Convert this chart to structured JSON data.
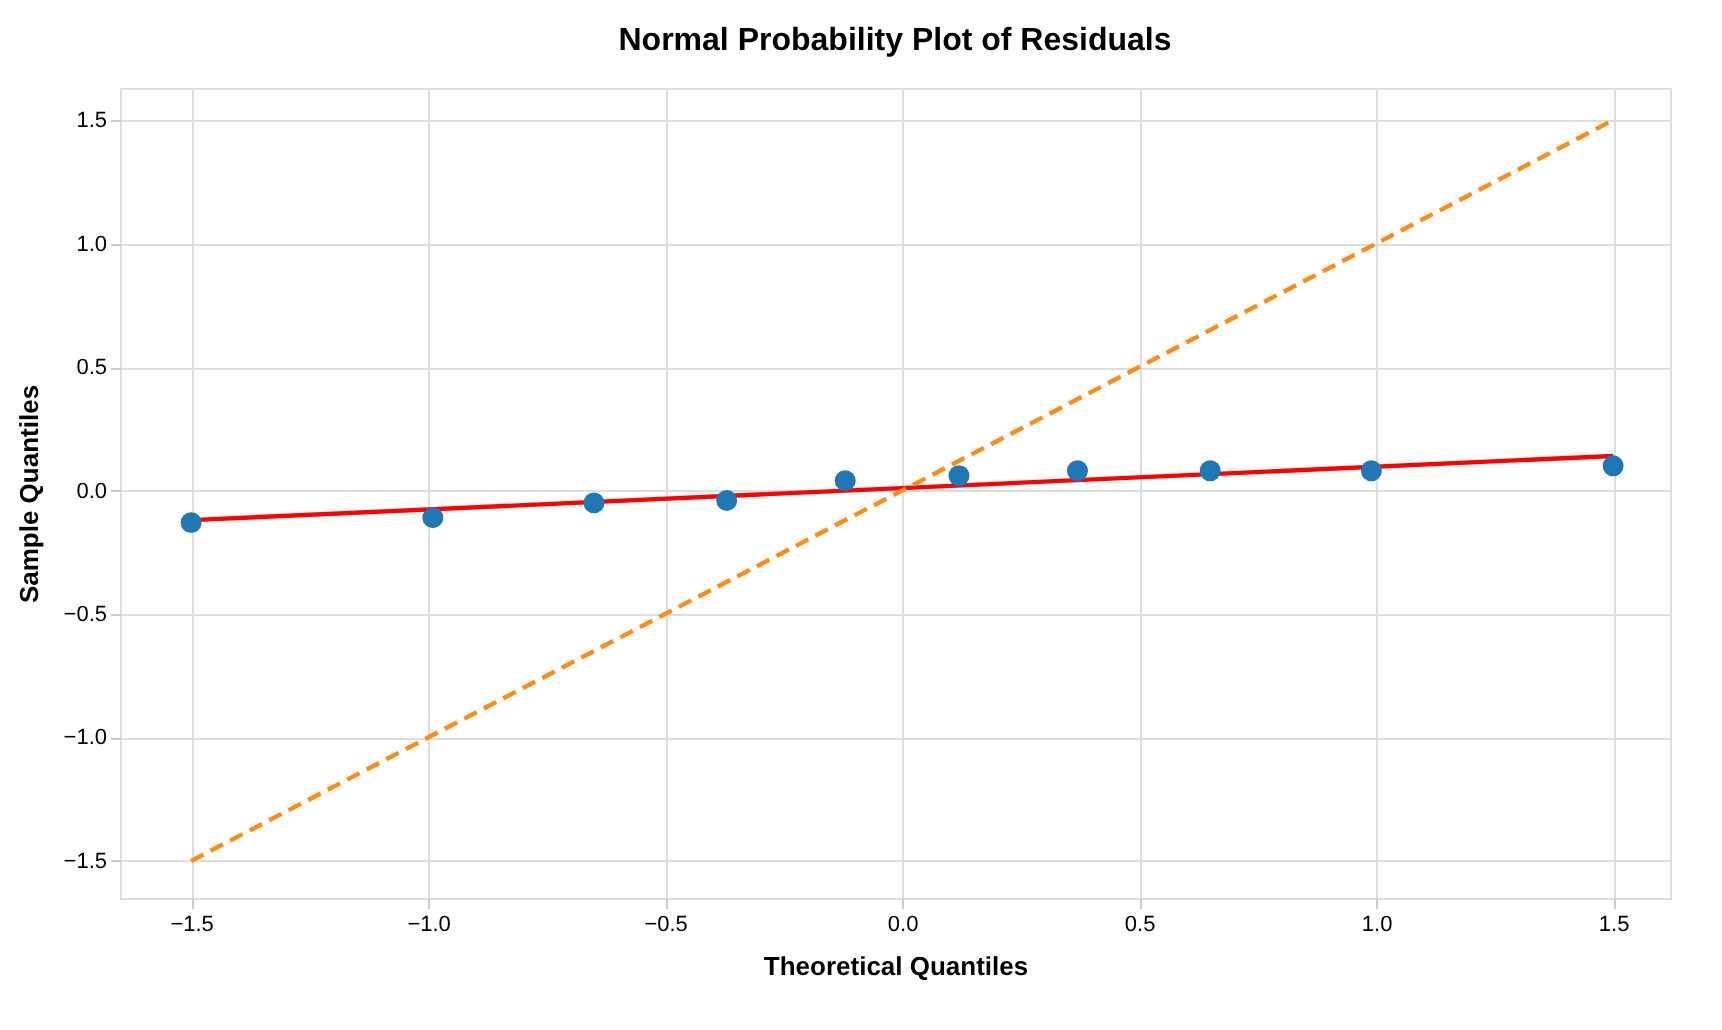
{
  "chart_data": {
    "type": "scatter",
    "title": "Normal Probability Plot of Residuals",
    "xlabel": "Theoretical Quantiles",
    "ylabel": "Sample Quantiles",
    "series": [
      {
        "color": "#1f77b4",
        "marker": "circle",
        "x": [
          -1.5,
          -0.99,
          -0.65,
          -0.37,
          -0.12,
          0.12,
          0.37,
          0.65,
          0.99,
          1.5
        ],
        "values": [
          -0.13,
          -0.11,
          -0.05,
          -0.04,
          0.04,
          0.06,
          0.08,
          0.08,
          0.08,
          0.1
        ]
      },
      {
        "type": "line",
        "color": "#ff0000",
        "line_style": "solid",
        "x": [
          -1.5,
          1.5
        ],
        "values": [
          -0.12,
          0.14
        ]
      },
      {
        "type": "line",
        "color": "#ff8c1a",
        "line_style": "dashed",
        "x": [
          -1.5,
          1.5
        ],
        "values": [
          -1.5,
          1.5
        ]
      }
    ],
    "xlim": [
      -1.65,
      1.62
    ],
    "ylim": [
      -1.65,
      1.63
    ],
    "xticks": [
      -1.5,
      {
        "value": -1,
        "label": "−1.0"
      },
      -0.5,
      {
        "value": 0,
        "label": "0.0"
      },
      0.5,
      {
        "value": 1,
        "label": "1.0"
      },
      1.5
    ],
    "yticks": [
      -1.5,
      {
        "value": -1,
        "label": "−1.0"
      },
      -0.5,
      {
        "value": 0,
        "label": "0.0"
      },
      0.5,
      {
        "value": 1,
        "label": "1.0"
      },
      1.5
    ],
    "grid": true
  }
}
